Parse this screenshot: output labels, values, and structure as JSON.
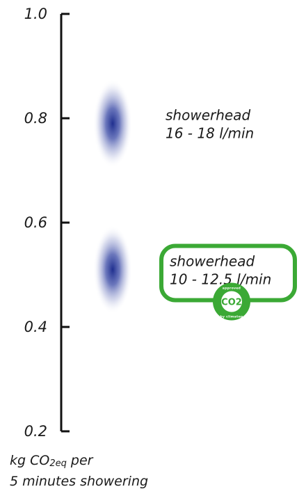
{
  "chart_data": {
    "type": "scatter",
    "title": "",
    "xlabel": "",
    "ylabel": {
      "prefix": "kg CO",
      "subscript": "2eq",
      "suffix": " per",
      "line2": "5 minutes showering"
    },
    "ylim": [
      0.2,
      1.0
    ],
    "yticks": [
      "1.0",
      "0.8",
      "0.6",
      "0.4",
      "0.2"
    ],
    "grid": false,
    "legend": "none",
    "points": [
      {
        "y": 0.79,
        "y_spread": [
          0.71,
          0.88
        ],
        "label_line1": "showerhead",
        "label_line2": "16 - 18 l/min",
        "highlighted": false
      },
      {
        "y": 0.51,
        "y_spread": [
          0.43,
          0.6
        ],
        "label_line1": "showerhead",
        "label_line2": "10 - 12.5 l/min",
        "highlighted": true
      }
    ],
    "colors": {
      "point": "#1f2f8f",
      "highlight": "#3ba935",
      "axis": "#111111"
    },
    "badge": {
      "center_text": "CO2",
      "ring_top": "approved",
      "ring_bottom": "by climatop"
    }
  }
}
